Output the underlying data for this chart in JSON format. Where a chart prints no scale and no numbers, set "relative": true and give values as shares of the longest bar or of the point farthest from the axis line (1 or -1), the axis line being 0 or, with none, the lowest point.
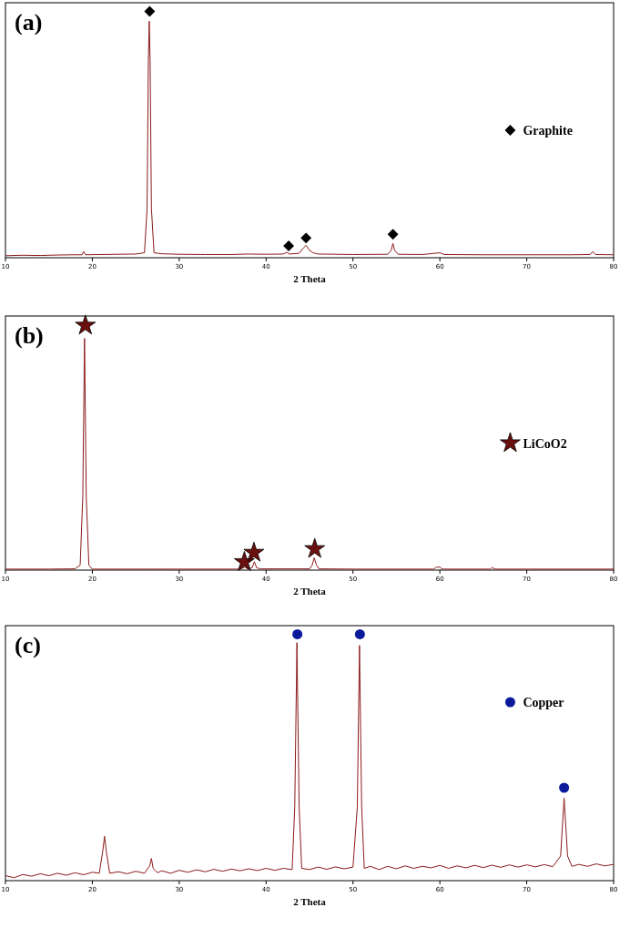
{
  "chart_data": [
    {
      "type": "line",
      "title": "(a)",
      "xlabel": "2 Theta",
      "xlim": [
        10,
        80
      ],
      "xticks": [
        10,
        20,
        30,
        40,
        50,
        60,
        70,
        80
      ],
      "relative": true,
      "legend": "right",
      "series": [
        {
          "type": "line",
          "color": "#8b1a1a",
          "x": [
            10,
            12,
            14,
            16,
            18,
            18.8,
            19,
            19.2,
            21,
            23,
            25,
            26,
            26.3,
            26.45,
            26.55,
            26.65,
            26.8,
            27.1,
            28,
            30,
            33,
            36,
            38,
            40,
            42,
            42.4,
            42.7,
            43.8,
            44.3,
            44.6,
            45,
            45.4,
            46,
            50,
            54,
            54.4,
            54.6,
            54.8,
            55.2,
            58,
            60,
            60.5,
            65,
            70,
            75,
            77.3,
            77.6,
            77.9,
            80
          ],
          "values": [
            0.008,
            0.01,
            0.009,
            0.011,
            0.012,
            0.012,
            0.025,
            0.012,
            0.013,
            0.014,
            0.015,
            0.02,
            0.2,
            0.8,
            0.96,
            0.8,
            0.2,
            0.02,
            0.016,
            0.014,
            0.013,
            0.013,
            0.015,
            0.014,
            0.015,
            0.022,
            0.015,
            0.018,
            0.04,
            0.05,
            0.03,
            0.02,
            0.015,
            0.013,
            0.014,
            0.03,
            0.058,
            0.03,
            0.014,
            0.013,
            0.02,
            0.013,
            0.012,
            0.012,
            0.012,
            0.013,
            0.025,
            0.013,
            0.012
          ]
        },
        {
          "type": "scatter",
          "name": "Graphite",
          "color": "#000000",
          "marker": "diamond",
          "x": [
            26.6,
            42.6,
            44.6,
            54.6
          ],
          "values": [
            1,
            0.048,
            0.08,
            0.095
          ]
        }
      ]
    },
    {
      "type": "line",
      "title": "(b)",
      "xlabel": "2 Theta",
      "xlim": [
        10,
        80
      ],
      "xticks": [
        10,
        20,
        30,
        40,
        50,
        60,
        70,
        80
      ],
      "relative": true,
      "legend": "right",
      "series": [
        {
          "type": "line",
          "color": "#8b1a1a",
          "x": [
            10,
            15,
            18,
            18.6,
            18.9,
            19.1,
            19.3,
            19.6,
            20,
            26,
            30,
            37,
            37.6,
            37.9,
            38.4,
            38.65,
            38.9,
            39.3,
            45,
            45.3,
            45.55,
            45.8,
            46.1,
            50,
            59.3,
            59.6,
            60,
            60.3,
            65.8,
            66,
            66.4,
            80
          ],
          "values": [
            0.004,
            0.004,
            0.005,
            0.02,
            0.3,
            0.944,
            0.3,
            0.02,
            0.004,
            0.004,
            0.004,
            0.004,
            0.012,
            0.004,
            0.01,
            0.034,
            0.01,
            0.005,
            0.005,
            0.02,
            0.05,
            0.02,
            0.005,
            0.004,
            0.004,
            0.012,
            0.012,
            0.004,
            0.004,
            0.01,
            0.004,
            0.004
          ]
        },
        {
          "type": "scatter",
          "name": "LiCoO2",
          "color": "#6b0f0f",
          "marker": "star",
          "x": [
            19.2,
            37.5,
            38.6,
            45.6
          ],
          "values": [
            1,
            0.037,
            0.075,
            0.09
          ]
        }
      ]
    },
    {
      "type": "line",
      "title": "(c)",
      "xlabel": "2 Theta",
      "xlim": [
        10,
        80
      ],
      "xticks": [
        10,
        20,
        30,
        40,
        50,
        60,
        70,
        80
      ],
      "relative": true,
      "legend": "top right",
      "series": [
        {
          "type": "line",
          "color": "#8b1a1a",
          "x": [
            10,
            11,
            12,
            13,
            14,
            15,
            16,
            17,
            18,
            19,
            20,
            20.8,
            21.2,
            21.4,
            21.6,
            22,
            23,
            24,
            25,
            26,
            26.6,
            26.8,
            27,
            27.5,
            28,
            29,
            30,
            31,
            32,
            33,
            34,
            35,
            36,
            37,
            38,
            39,
            40,
            41,
            42,
            43,
            43.3,
            43.55,
            43.8,
            44.1,
            45,
            46,
            47,
            48,
            49,
            50,
            50.5,
            50.75,
            51,
            51.3,
            52,
            53,
            54,
            55,
            56,
            57,
            58,
            59,
            60,
            61,
            62,
            63,
            64,
            65,
            66,
            67,
            68,
            69,
            70,
            71,
            72,
            73,
            73.9,
            74.3,
            74.7,
            75.2,
            76,
            77,
            78,
            79,
            80
          ],
          "values": [
            0.02,
            0.012,
            0.025,
            0.018,
            0.028,
            0.02,
            0.03,
            0.022,
            0.032,
            0.024,
            0.034,
            0.03,
            0.12,
            0.18,
            0.12,
            0.03,
            0.036,
            0.028,
            0.038,
            0.03,
            0.06,
            0.09,
            0.05,
            0.032,
            0.04,
            0.03,
            0.042,
            0.034,
            0.044,
            0.036,
            0.046,
            0.038,
            0.047,
            0.04,
            0.048,
            0.041,
            0.05,
            0.042,
            0.05,
            0.045,
            0.3,
            0.966,
            0.3,
            0.05,
            0.045,
            0.055,
            0.046,
            0.056,
            0.048,
            0.055,
            0.3,
            0.955,
            0.3,
            0.05,
            0.058,
            0.045,
            0.058,
            0.048,
            0.06,
            0.05,
            0.058,
            0.052,
            0.062,
            0.05,
            0.06,
            0.052,
            0.062,
            0.053,
            0.063,
            0.054,
            0.064,
            0.055,
            0.064,
            0.056,
            0.065,
            0.057,
            0.1,
            0.335,
            0.1,
            0.058,
            0.066,
            0.058,
            0.068,
            0.06,
            0.066
          ]
        },
        {
          "type": "scatter",
          "name": "Copper",
          "color": "#0a1a9a",
          "marker": "circle",
          "x": [
            43.6,
            50.8,
            74.3
          ],
          "values": [
            1,
            1,
            0.377
          ]
        }
      ]
    }
  ]
}
